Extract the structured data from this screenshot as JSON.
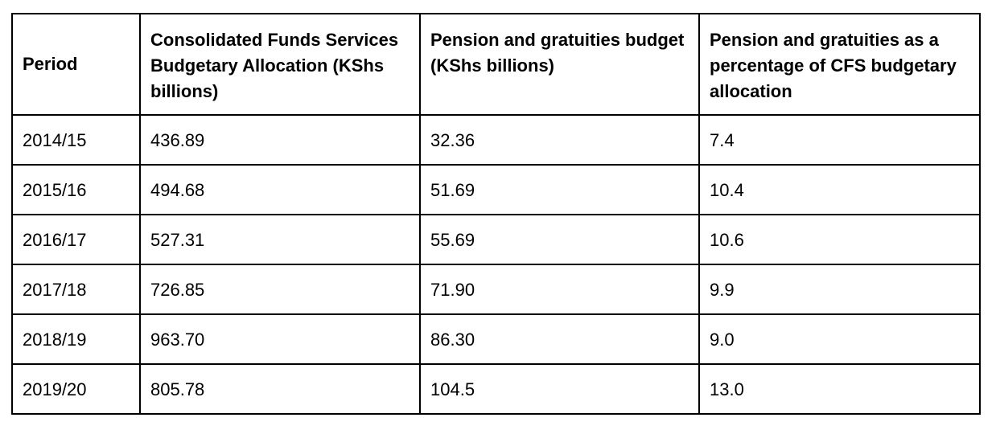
{
  "table": {
    "headers": [
      "Period",
      "Consolidated Funds Services Budgetary Allocation (KShs billions)",
      "Pension and gratuities budget (KShs billions)",
      "Pension and gratuities as a percentage of CFS budgetary allocation"
    ],
    "rows": [
      [
        "2014/15",
        "436.89",
        "32.36",
        "7.4"
      ],
      [
        "2015/16",
        "494.68",
        "51.69",
        "10.4"
      ],
      [
        "2016/17",
        "527.31",
        "55.69",
        "10.6"
      ],
      [
        "2017/18",
        "726.85",
        "71.90",
        "9.9"
      ],
      [
        "2018/19",
        "963.70",
        "86.30",
        "9.0"
      ],
      [
        "2019/20",
        "805.78",
        "104.5",
        "13.0"
      ]
    ]
  }
}
